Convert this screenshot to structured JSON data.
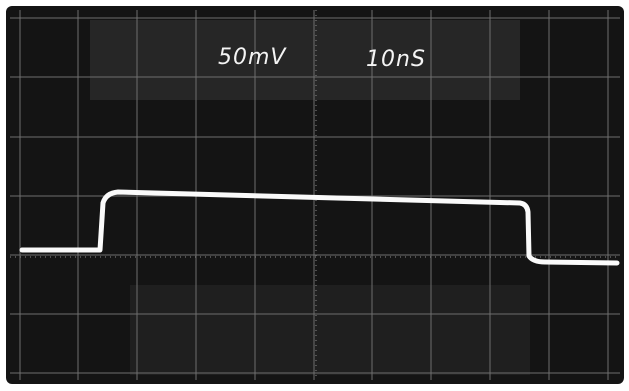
{
  "screen": {
    "volts_per_div": "50mV",
    "time_per_div": "10nS"
  }
}
